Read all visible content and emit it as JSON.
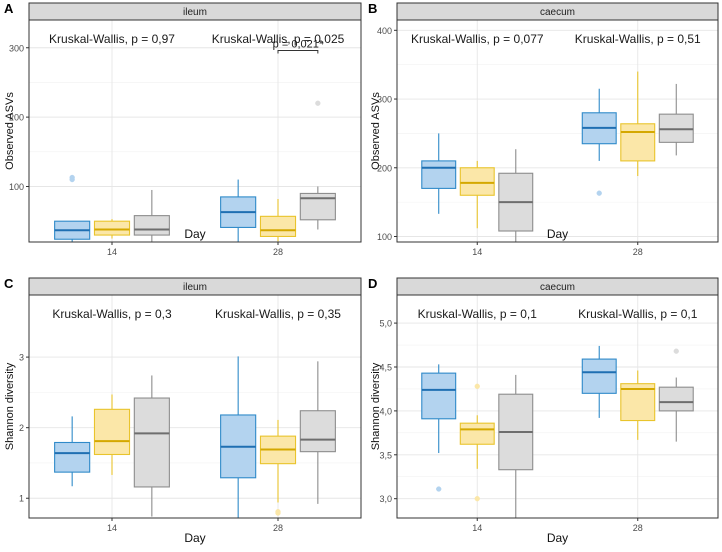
{
  "chart_data": [
    {
      "type": "box",
      "panel_label": "A",
      "strip_title": "ileum",
      "xlabel": "Day",
      "ylabel": "Observed ASVs",
      "categories": [
        "14",
        "28"
      ],
      "ylim": [
        20,
        340
      ],
      "yticks": [
        100,
        200,
        300
      ],
      "ytick_labels": [
        "100",
        "200",
        "300"
      ],
      "group_colors": [
        {
          "fill": "#b3d3ef",
          "stroke": "#2f8ac9",
          "median": "#1f6fb2"
        },
        {
          "fill": "#fbe7a8",
          "stroke": "#e9c42c",
          "median": "#d4a800"
        },
        {
          "fill": "#dcdcdc",
          "stroke": "#8d8d8d",
          "median": "#6e6e6e"
        }
      ],
      "boxes": [
        [
          {
            "min": 20,
            "q1": 24,
            "median": 37,
            "q3": 50,
            "max": 50,
            "outliers": [
              110,
              113
            ]
          },
          {
            "min": 25,
            "q1": 30,
            "median": 38,
            "q3": 50,
            "max": 53,
            "outliers": []
          },
          {
            "min": 19,
            "q1": 30,
            "median": 38,
            "q3": 58,
            "max": 95,
            "outliers": []
          }
        ],
        [
          {
            "min": 19,
            "q1": 41,
            "median": 63,
            "q3": 85,
            "max": 110,
            "outliers": []
          },
          {
            "min": 21,
            "q1": 28,
            "median": 37,
            "q3": 57,
            "max": 82,
            "outliers": []
          },
          {
            "min": 38,
            "q1": 52,
            "median": 83,
            "q3": 90,
            "max": 100,
            "outliers": [
              220
            ]
          }
        ]
      ],
      "annotations": [
        "Kruskal-Wallis, p = 0,97",
        "Kruskal-Wallis, p = 0,025"
      ],
      "significance": {
        "label": "p = 0,021*",
        "between": [
          1,
          2
        ],
        "category": 1,
        "y": 296
      }
    },
    {
      "type": "box",
      "panel_label": "B",
      "strip_title": "caecum",
      "xlabel": "Day",
      "ylabel": "Observed ASVs",
      "categories": [
        "14",
        "28"
      ],
      "ylim": [
        92,
        415
      ],
      "yticks": [
        100,
        200,
        300,
        400
      ],
      "ytick_labels": [
        "100",
        "200",
        "300",
        "400"
      ],
      "group_colors": [
        {
          "fill": "#b3d3ef",
          "stroke": "#2f8ac9",
          "median": "#1f6fb2"
        },
        {
          "fill": "#fbe7a8",
          "stroke": "#e9c42c",
          "median": "#d4a800"
        },
        {
          "fill": "#dcdcdc",
          "stroke": "#8d8d8d",
          "median": "#6e6e6e"
        }
      ],
      "boxes": [
        [
          {
            "min": 133,
            "q1": 170,
            "median": 200,
            "q3": 210,
            "max": 250,
            "outliers": []
          },
          {
            "min": 112,
            "q1": 160,
            "median": 178,
            "q3": 200,
            "max": 210,
            "outliers": []
          },
          {
            "min": 92,
            "q1": 108,
            "median": 150,
            "q3": 192,
            "max": 227,
            "outliers": []
          }
        ],
        [
          {
            "min": 210,
            "q1": 235,
            "median": 258,
            "q3": 280,
            "max": 315,
            "outliers": [
              163
            ]
          },
          {
            "min": 188,
            "q1": 210,
            "median": 252,
            "q3": 264,
            "max": 340,
            "outliers": []
          },
          {
            "min": 218,
            "q1": 237,
            "median": 256,
            "q3": 278,
            "max": 322,
            "outliers": []
          }
        ]
      ],
      "annotations": [
        "Kruskal-Wallis, p = 0,077",
        "Kruskal-Wallis, p = 0,51"
      ]
    },
    {
      "type": "box",
      "panel_label": "C",
      "strip_title": "ileum",
      "xlabel": "Day",
      "ylabel": "Shannon diversity",
      "categories": [
        "14",
        "28"
      ],
      "ylim": [
        0.72,
        3.88
      ],
      "yticks": [
        1,
        2,
        3
      ],
      "ytick_labels": [
        "1",
        "2",
        "3"
      ],
      "group_colors": [
        {
          "fill": "#b3d3ef",
          "stroke": "#2f8ac9",
          "median": "#1f6fb2"
        },
        {
          "fill": "#fbe7a8",
          "stroke": "#e9c42c",
          "median": "#d4a800"
        },
        {
          "fill": "#dcdcdc",
          "stroke": "#8d8d8d",
          "median": "#6e6e6e"
        }
      ],
      "boxes": [
        [
          {
            "min": 1.17,
            "q1": 1.37,
            "median": 1.64,
            "q3": 1.79,
            "max": 2.16,
            "outliers": []
          },
          {
            "min": 1.33,
            "q1": 1.62,
            "median": 1.81,
            "q3": 2.26,
            "max": 2.47,
            "outliers": []
          },
          {
            "min": 0.74,
            "q1": 1.16,
            "median": 1.92,
            "q3": 2.42,
            "max": 2.74,
            "outliers": []
          }
        ],
        [
          {
            "min": 0.72,
            "q1": 1.29,
            "median": 1.73,
            "q3": 2.18,
            "max": 3.01,
            "outliers": []
          },
          {
            "min": 0.94,
            "q1": 1.49,
            "median": 1.69,
            "q3": 1.88,
            "max": 2.11,
            "outliers": [
              0.79,
              0.81
            ]
          },
          {
            "min": 0.92,
            "q1": 1.66,
            "median": 1.83,
            "q3": 2.24,
            "max": 2.94,
            "outliers": []
          }
        ]
      ],
      "annotations": [
        "Kruskal-Wallis, p = 0,3",
        "Kruskal-Wallis, p = 0,35"
      ]
    },
    {
      "type": "box",
      "panel_label": "D",
      "strip_title": "caecum",
      "xlabel": "Day",
      "ylabel": "Shannon diversity",
      "categories": [
        "14",
        "28"
      ],
      "ylim": [
        2.78,
        5.32
      ],
      "yticks": [
        3.0,
        3.5,
        4.0,
        4.5,
        5.0
      ],
      "ytick_labels": [
        "3,0",
        "3,5",
        "4,0",
        "4,5",
        "5,0"
      ],
      "group_colors": [
        {
          "fill": "#b3d3ef",
          "stroke": "#2f8ac9",
          "median": "#1f6fb2"
        },
        {
          "fill": "#fbe7a8",
          "stroke": "#e9c42c",
          "median": "#d4a800"
        },
        {
          "fill": "#dcdcdc",
          "stroke": "#8d8d8d",
          "median": "#6e6e6e"
        }
      ],
      "boxes": [
        [
          {
            "min": 3.52,
            "q1": 3.91,
            "median": 4.24,
            "q3": 4.43,
            "max": 4.53,
            "outliers": [
              3.11
            ]
          },
          {
            "min": 3.34,
            "q1": 3.62,
            "median": 3.79,
            "q3": 3.86,
            "max": 3.95,
            "outliers": [
              4.28,
              3.0
            ]
          },
          {
            "min": 2.78,
            "q1": 3.33,
            "median": 3.76,
            "q3": 4.19,
            "max": 4.41,
            "outliers": []
          }
        ],
        [
          {
            "min": 3.92,
            "q1": 4.2,
            "median": 4.44,
            "q3": 4.59,
            "max": 4.74,
            "outliers": []
          },
          {
            "min": 3.67,
            "q1": 3.89,
            "median": 4.25,
            "q3": 4.31,
            "max": 4.46,
            "outliers": []
          },
          {
            "min": 3.65,
            "q1": 4.0,
            "median": 4.1,
            "q3": 4.27,
            "max": 4.38,
            "outliers": [
              4.68
            ]
          }
        ]
      ],
      "annotations": [
        "Kruskal-Wallis, p = 0,1",
        "Kruskal-Wallis, p = 0,1"
      ]
    }
  ]
}
